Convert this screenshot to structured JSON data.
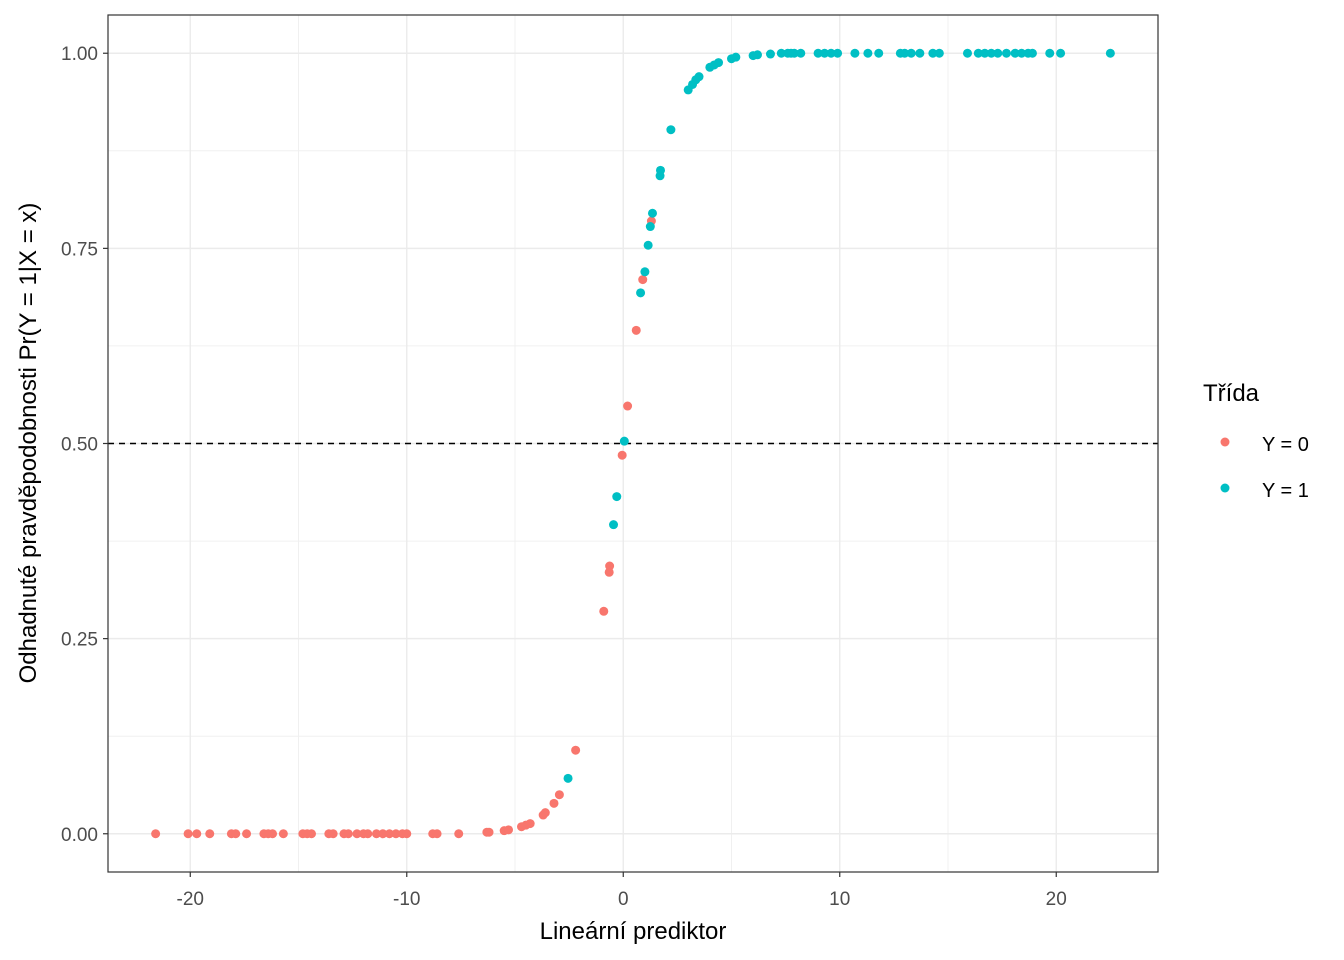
{
  "chart_data": {
    "type": "scatter",
    "xlabel": "Lineární prediktor",
    "ylabel": "Odhadnuté pravděpodobnosti Pr(Y = 1|X = x)",
    "xlim": [
      -23.8,
      24.7
    ],
    "ylim": [
      -0.049,
      1.049
    ],
    "xticks": [
      -20,
      -10,
      0,
      10,
      20
    ],
    "xtick_labels": [
      "-20",
      "-10",
      "0",
      "10",
      "20"
    ],
    "yticks": [
      0,
      0.25,
      0.5,
      0.75,
      1
    ],
    "ytick_labels": [
      "0.00",
      "0.25",
      "0.50",
      "0.75",
      "1.00"
    ],
    "grid": true,
    "hline": {
      "y": 0.5,
      "style": "dashed",
      "color": "#000000"
    },
    "legend": {
      "title": "Třída",
      "placement": "right"
    },
    "series": [
      {
        "name": "Y = 0",
        "color": "#F8766D",
        "x": [
          -21.6,
          -20.1,
          -19.7,
          -19.1,
          -18.1,
          -17.9,
          -17.4,
          -16.6,
          -16.4,
          -16.2,
          -15.7,
          -14.8,
          -14.6,
          -14.4,
          -13.6,
          -13.4,
          -12.9,
          -12.7,
          -12.3,
          -12.0,
          -11.8,
          -11.4,
          -11.1,
          -10.8,
          -10.5,
          -10.2,
          -10.0,
          -8.8,
          -8.6,
          -7.6,
          -6.3,
          -6.2,
          -5.5,
          -5.3,
          -4.7,
          -4.5,
          -4.3,
          -3.7,
          -3.6,
          -3.2,
          -2.95,
          -2.2,
          -0.9,
          -0.65,
          -0.63,
          -0.05,
          0.2,
          0.6,
          0.9,
          1.3
        ],
        "y": [
          0,
          0,
          0,
          0,
          0,
          0,
          0,
          0,
          0,
          0,
          0,
          0,
          0,
          0,
          0,
          0,
          0,
          0,
          0,
          0,
          0,
          0,
          0,
          0,
          0,
          0,
          0,
          0,
          0,
          0,
          0.002,
          0.002,
          0.004,
          0.005,
          0.009,
          0.011,
          0.013,
          0.024,
          0.027,
          0.039,
          0.05,
          0.107,
          0.285,
          0.335,
          0.343,
          0.485,
          0.548,
          0.645,
          0.71,
          0.785
        ]
      },
      {
        "name": "Y = 1",
        "color": "#00BFC4",
        "x": [
          -2.55,
          -0.45,
          -0.3,
          0.05,
          0.8,
          1.0,
          1.15,
          1.25,
          1.35,
          1.7,
          1.72,
          2.2,
          3.0,
          3.2,
          3.35,
          3.5,
          4.0,
          4.2,
          4.4,
          5.0,
          5.2,
          6.0,
          6.2,
          6.8,
          7.3,
          7.6,
          7.75,
          7.9,
          8.2,
          9.0,
          9.3,
          9.6,
          9.9,
          10.7,
          11.3,
          11.8,
          12.8,
          13.0,
          13.3,
          13.7,
          14.3,
          14.6,
          15.9,
          16.4,
          16.7,
          17.0,
          17.3,
          17.7,
          18.1,
          18.4,
          18.7,
          18.9,
          19.7,
          20.2,
          22.5
        ],
        "y": [
          0.071,
          0.396,
          0.432,
          0.503,
          0.693,
          0.72,
          0.754,
          0.778,
          0.795,
          0.843,
          0.85,
          0.902,
          0.953,
          0.96,
          0.966,
          0.97,
          0.982,
          0.985,
          0.988,
          0.993,
          0.995,
          0.997,
          0.998,
          0.999,
          1,
          1,
          1,
          1,
          1,
          1,
          1,
          1,
          1,
          1,
          1,
          1,
          1,
          1,
          1,
          1,
          1,
          1,
          1,
          1,
          1,
          1,
          1,
          1,
          1,
          1,
          1,
          1,
          1,
          1,
          1
        ]
      }
    ]
  }
}
